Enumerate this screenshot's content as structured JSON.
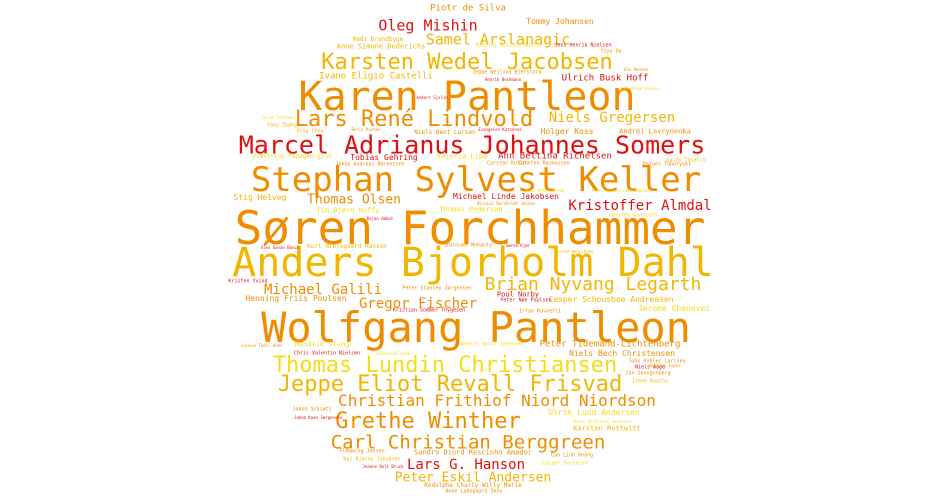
{
  "words": {
    "w1": {
      "text": "Søren Forchhammer",
      "color": "#f08c00"
    },
    "w2": {
      "text": "Anders Bjorholm Dahl",
      "color": "#f2b600"
    },
    "w3": {
      "text": "Wolfgang Pantleon",
      "color": "#f08c00"
    },
    "w4": {
      "text": "Karen Pantleon",
      "color": "#f08c00"
    },
    "w5": {
      "text": "Stephan Sylvest Keller",
      "color": "#f08c00"
    },
    "w6": {
      "text": "Marcel Adrianus Johannes Somers",
      "color": "#e01010"
    },
    "w7": {
      "text": "Thomas Lundin Christiansen",
      "color": "#f6dc16"
    },
    "w8": {
      "text": "Jeppe Eliot Revall Frisvad",
      "color": "#f2b600"
    },
    "w9": {
      "text": "Karsten Wedel Jacobsen",
      "color": "#f2b600"
    },
    "w10": {
      "text": "Lars René Lindvold",
      "color": "#f08c00"
    },
    "w11": {
      "text": "Grethe Winther",
      "color": "#f08c00"
    },
    "w12": {
      "text": "Carl Christian Berggreen",
      "color": "#f08c00"
    },
    "w13": {
      "text": "Brian Nyvang Legarth",
      "color": "#f2b600"
    },
    "w14": {
      "text": "Christian Frithiof Niord Niordson",
      "color": "#f08c00"
    },
    "w15": {
      "text": "Oleg Mishin",
      "color": "#e01010"
    },
    "w16": {
      "text": "Samel Arslanagic",
      "color": "#f2b600"
    },
    "w17": {
      "text": "Niels Gregersen",
      "color": "#f2b600"
    },
    "w18": {
      "text": "Michael Galili",
      "color": "#f08c00"
    },
    "w19": {
      "text": "Gregor Fischer",
      "color": "#f08c00"
    },
    "w20": {
      "text": "Kristoffer Almdal",
      "color": "#e01010"
    },
    "w21": {
      "text": "Thomas Olsen",
      "color": "#f08c00"
    },
    "w22": {
      "text": "Lars G. Hanson",
      "color": "#e01010"
    },
    "w23": {
      "text": "Peter Eskil Andersen",
      "color": "#f2b600"
    },
    "w24": {
      "text": "Piotr de Silva",
      "color": "#f08c00"
    },
    "w25": {
      "text": "Tommy Johansen",
      "color": "#f08c00"
    },
    "w26": {
      "text": "Ivano Eligio Castelli",
      "color": "#f2b600"
    },
    "w27": {
      "text": "Ulrich Busk Hoff",
      "color": "#e01010"
    },
    "w28": {
      "text": "Holger Koss",
      "color": "#f08c00"
    },
    "w29": {
      "text": "Andrei Lavrynenka",
      "color": "#f08c00"
    },
    "w30": {
      "text": "Niels Bent Larsen",
      "color": "#f08c00"
    },
    "w31": {
      "text": "Tobias Gehring",
      "color": "#e01010"
    },
    "w32": {
      "text": "Ann Bettina Richelsen",
      "color": "#e01010"
    },
    "w33": {
      "text": "Stig Helveg",
      "color": "#f2b600"
    },
    "w34": {
      "text": "Michael Linde Jakobsen",
      "color": "#e01010"
    },
    "w35": {
      "text": "Henning Friis Poulsen",
      "color": "#f08c00"
    },
    "w36": {
      "text": "Poul Norby",
      "color": "#e01010"
    },
    "w37": {
      "text": "Casper Schousboe Andreasen",
      "color": "#f2b600"
    },
    "w38": {
      "text": "Peter Tidemand-Lichtenberg",
      "color": "#f08c00"
    },
    "w39": {
      "text": "Niels Bech Christensen",
      "color": "#f08c00"
    },
    "w40": {
      "text": "Ulrik Lund Andersen",
      "color": "#f6dc16"
    },
    "w41": {
      "text": "Karsten Rottwitt",
      "color": "#f2b600"
    },
    "w42": {
      "text": "Sandro Diord Rescinho Amador",
      "color": "#f08c00"
    },
    "w43": {
      "text": "Rodolphe Charly Willy Marie",
      "color": "#f08c00"
    },
    "w44": {
      "text": "Anne Ladegaard Skov",
      "color": "#f08c00"
    },
    "w45": {
      "text": "Jerome Chenevez",
      "color": "#f6dc16"
    },
    "w46": {
      "text": "Mads Brandbyge",
      "color": "#f2b600"
    },
    "w47": {
      "text": "Anne Simone Dederichs",
      "color": "#f2b600"
    },
    "w48": {
      "text": "Jens Henrik Nielsen",
      "color": "#e01010"
    },
    "w49": {
      "text": "Yiyu Ou",
      "color": "#f08c00"
    },
    "w50": {
      "text": "Jeppe Wejlund Bjerstorp",
      "color": "#f08c00"
    },
    "w51": {
      "text": "Henrik Bechmann",
      "color": "#e01010"
    },
    "w52": {
      "text": "Carsten Rasmussen",
      "color": "#f08c00"
    },
    "w53": {
      "text": "Peter Stanley Jørgensen",
      "color": "#f08c00"
    },
    "w54": {
      "text": "Peter Nøe Poulsen",
      "color": "#e01010"
    },
    "w55": {
      "text": "Kristian Sommer Thygesen",
      "color": "#e01010"
    },
    "w56": {
      "text": "Irfan Kuvvetli",
      "color": "#f08c00"
    },
    "w57": {
      "text": "Jakob Andreas Bærentzen",
      "color": "#f08c00"
    },
    "w58": {
      "text": "Valeria Lima",
      "color": "#f6dc16"
    },
    "w59": {
      "text": "Chris Valentin Nielsen",
      "color": "#e01010"
    },
    "w60": {
      "text": "Kurt Nielsgaard Hansen",
      "color": "#f2b600"
    },
    "w61": {
      "text": "Thomas Pedersen",
      "color": "#f6dc16"
    },
    "w62": {
      "text": "Tim Bjørn Hoffy",
      "color": "#f6dc16"
    },
    "w63": {
      "text": "Kristen Yvind",
      "color": "#e01010"
    },
    "w64": {
      "text": "Hendrik Stang",
      "color": "#f6dc16"
    },
    "w65": {
      "text": "John Kohler Carlsen",
      "color": "#f08c00"
    },
    "w66": {
      "text": "Niels Aage",
      "color": "#e01010"
    },
    "w67": {
      "text": "Jan Sevngenberg",
      "color": "#f08c00"
    },
    "w68": {
      "text": "Irene Rocchi",
      "color": "#f2b600"
    },
    "w69": {
      "text": "Jakob Schiøtz",
      "color": "#f08c00"
    },
    "w70": {
      "text": "Jakob Kaae Jørgensen",
      "color": "#e01010"
    },
    "w71": {
      "text": "Flemming Jensen",
      "color": "#f08c00"
    },
    "w72": {
      "text": "Kaj Bjarne Jakobsen",
      "color": "#f2b600"
    },
    "w73": {
      "text": "Cao Linh Hoang",
      "color": "#f08c00"
    },
    "w74": {
      "text": "Guido Tosello",
      "color": "#f2b600"
    },
    "w75": {
      "text": "Carsten Kutzov",
      "color": "#f08c00"
    },
    "w76": {
      "text": "Rafael Taboryski",
      "color": "#f08c00"
    },
    "w77": {
      "text": "Ding Chen",
      "color": "#f2b600"
    },
    "w78": {
      "text": "Yang Zhang",
      "color": "#f2b600"
    },
    "w79": {
      "text": "Dimitrios Papageorgiou",
      "color": "#f6dc16"
    },
    "w80": {
      "text": "Bolun Tekjavk",
      "color": "#f6dc16"
    },
    "w81": {
      "text": "Nikolaj Nikitas Boutsy",
      "color": "#f6dc16"
    },
    "w82": {
      "text": "Boris Ruchev",
      "color": "#f08c00"
    },
    "w83": {
      "text": "Kim Brand Hansen",
      "color": "#f6dc16"
    },
    "w84": {
      "text": "Evangelos Katsanos",
      "color": "#e01010"
    },
    "w85": {
      "text": "Ole Hansen",
      "color": "#f08c00"
    },
    "w86": {
      "text": "Anders Sjolin",
      "color": "#e01010"
    },
    "w87": {
      "text": "Alex Gavan Bonzo",
      "color": "#e01010"
    },
    "w88": {
      "text": "Shinsuke Mohanty",
      "color": "#f08c00"
    },
    "w89": {
      "text": "Louise Theil Kuhn",
      "color": "#f08c00"
    },
    "w90": {
      "text": "Sebastian Holm",
      "color": "#f6dc16"
    },
    "w91": {
      "text": "Niels Christian Sørensen",
      "color": "#f6dc16"
    },
    "w92": {
      "text": "Anders Smith Johansen",
      "color": "#f6dc16"
    },
    "w93": {
      "text": "Søren Kjær",
      "color": "#e01010"
    },
    "w94": {
      "text": "Peter Christian Sandgaard",
      "color": "#f6dc16"
    },
    "w95": {
      "text": "Hans Peter Brede",
      "color": "#f6dc16"
    },
    "w96": {
      "text": "Jeanne Bolt Bruck",
      "color": "#e01010"
    },
    "w97": {
      "text": "Casper Sorensen",
      "color": "#f6dc16"
    },
    "w98": {
      "text": "Morten Henriksen",
      "color": "#f2b600"
    },
    "w99": {
      "text": "Rajan Ambat",
      "color": "#e01010"
    },
    "w100": {
      "text": "Nicolai Barnholdt Jensen",
      "color": "#f08c00"
    },
    "w101": {
      "text": "Carsten Gundlach",
      "color": "#f6dc16"
    },
    "w102": {
      "text": "Nikolaj Lopez",
      "color": "#f08c00"
    }
  }
}
